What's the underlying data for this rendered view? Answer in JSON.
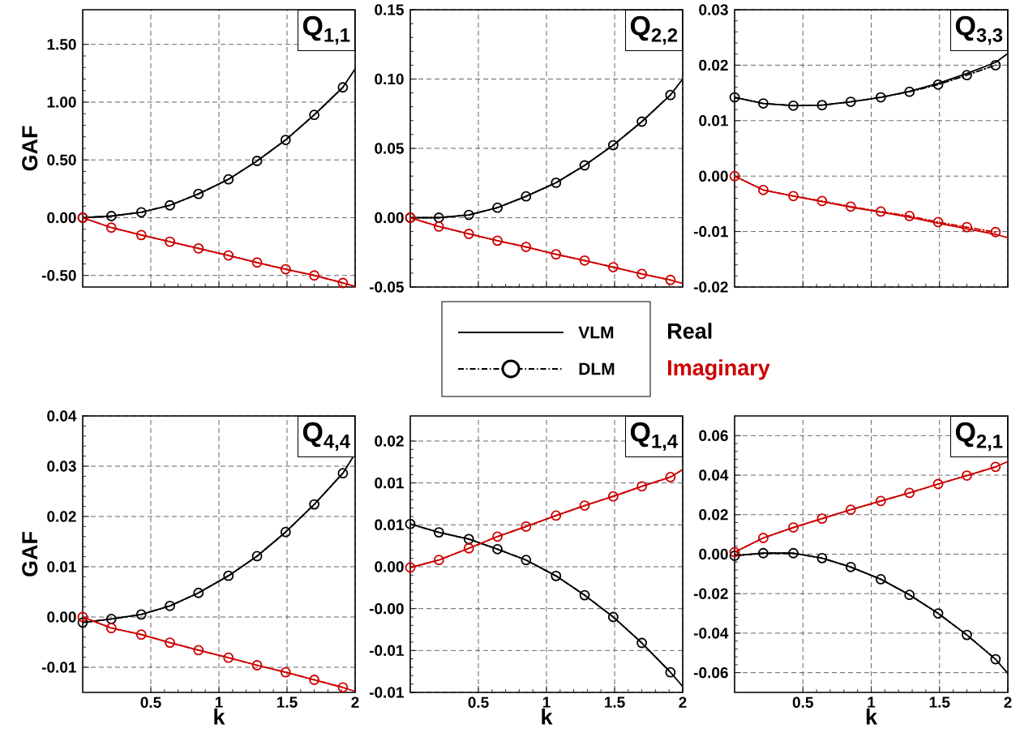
{
  "chart_data": [
    {
      "type": "line",
      "title": "Q$_{1,1}$",
      "ylabel": "GAF",
      "xlim": [
        0,
        2
      ],
      "ylim": [
        -0.6,
        1.8
      ],
      "xticks": [
        0.5,
        1,
        1.5,
        2
      ],
      "tick_labels": "y",
      "grid": true,
      "yticks": [
        {
          "value": -0.5,
          "label": "-0.50"
        },
        {
          "value": 0,
          "label": "0.00"
        },
        {
          "value": 0.5,
          "label": "0.50"
        },
        {
          "value": 1,
          "label": "1.00"
        },
        {
          "value": 1.5,
          "label": "1.50"
        }
      ],
      "series": [
        {
          "color": "#000000",
          "line_style": "dashed",
          "marker": "circle",
          "x": [
            0,
            0.21,
            0.43,
            0.64,
            0.85,
            1.07,
            1.28,
            1.49,
            1.7,
            1.91
          ],
          "values": [
            0,
            0.014,
            0.047,
            0.107,
            0.206,
            0.332,
            0.491,
            0.673,
            0.89,
            1.128
          ]
        },
        {
          "color": "#000000",
          "line_style": "solid",
          "marker": "none",
          "x": [
            0,
            0.21,
            0.43,
            0.64,
            0.85,
            1.07,
            1.28,
            1.49,
            1.7,
            1.91,
            2
          ],
          "values": [
            0,
            0.014,
            0.047,
            0.107,
            0.206,
            0.332,
            0.491,
            0.673,
            0.89,
            1.128,
            1.287
          ]
        },
        {
          "color": "#cc0000",
          "line_style": "dashed",
          "marker": "circle",
          "x": [
            0,
            0.21,
            0.43,
            0.64,
            0.85,
            1.07,
            1.28,
            1.49,
            1.7,
            1.91
          ],
          "values": [
            0,
            -0.086,
            -0.15,
            -0.208,
            -0.266,
            -0.327,
            -0.388,
            -0.446,
            -0.5,
            -0.565
          ]
        },
        {
          "color": "#cc0000",
          "line_style": "solid",
          "marker": "none",
          "x": [
            0,
            0.21,
            0.43,
            0.64,
            0.85,
            1.07,
            1.28,
            1.49,
            1.7,
            1.91,
            2
          ],
          "values": [
            0,
            -0.086,
            -0.15,
            -0.208,
            -0.266,
            -0.327,
            -0.388,
            -0.446,
            -0.5,
            -0.565,
            -0.595
          ]
        }
      ]
    },
    {
      "type": "line",
      "title": "Q$_{2,2}$",
      "xlim": [
        0,
        2
      ],
      "ylim": [
        -0.05,
        0.15
      ],
      "xticks": [
        0.5,
        1,
        1.5,
        2
      ],
      "tick_labels": "y",
      "grid": true,
      "yticks": [
        -0.05,
        {
          "value": 0,
          "label": "0.00"
        },
        0.05,
        {
          "value": 0.1,
          "label": "0.10"
        },
        0.15
      ],
      "series": [
        {
          "color": "#000000",
          "line_style": "dashed",
          "marker": "circle",
          "x": [
            0,
            0.21,
            0.43,
            0.64,
            0.85,
            1.07,
            1.28,
            1.49,
            1.7,
            1.91
          ],
          "values": [
            0,
            0,
            0.002,
            0.0072,
            0.0154,
            0.0252,
            0.0377,
            0.0523,
            0.0693,
            0.0885
          ]
        },
        {
          "color": "#000000",
          "line_style": "solid",
          "marker": "none",
          "x": [
            0,
            0.21,
            0.43,
            0.64,
            0.85,
            1.07,
            1.28,
            1.49,
            1.7,
            1.91,
            2
          ],
          "values": [
            0,
            0,
            0.002,
            0.0072,
            0.0154,
            0.0252,
            0.0377,
            0.0523,
            0.0693,
            0.0885,
            0.1
          ]
        },
        {
          "color": "#cc0000",
          "line_style": "dashed",
          "marker": "circle",
          "x": [
            0,
            0.21,
            0.43,
            0.64,
            0.85,
            1.07,
            1.28,
            1.49,
            1.7,
            1.91
          ],
          "values": [
            0,
            -0.0064,
            -0.0117,
            -0.0166,
            -0.0211,
            -0.0264,
            -0.0309,
            -0.0357,
            -0.0406,
            -0.0449
          ]
        },
        {
          "color": "#cc0000",
          "line_style": "solid",
          "marker": "none",
          "x": [
            0,
            0.21,
            0.43,
            0.64,
            0.85,
            1.07,
            1.28,
            1.49,
            1.7,
            1.91,
            2
          ],
          "values": [
            0,
            -0.0064,
            -0.0117,
            -0.0166,
            -0.0211,
            -0.0264,
            -0.0309,
            -0.0357,
            -0.0406,
            -0.0449,
            -0.0475
          ]
        }
      ]
    },
    {
      "type": "line",
      "title": "Q$_{3,3}$",
      "xlim": [
        0,
        2
      ],
      "ylim": [
        -0.02,
        0.03
      ],
      "xticks": [
        0.5,
        1,
        1.5,
        2
      ],
      "tick_labels": "y",
      "grid": true,
      "yticks": [
        -0.02,
        -0.01,
        {
          "value": 0,
          "label": "0.00"
        },
        0.01,
        0.02,
        0.03
      ],
      "series": [
        {
          "color": "#000000",
          "line_style": "dashed",
          "marker": "circle",
          "x": [
            0,
            0.21,
            0.43,
            0.64,
            0.85,
            1.07,
            1.28,
            1.49,
            1.7,
            1.91
          ],
          "values": [
            0.0142,
            0.0131,
            0.0127,
            0.0128,
            0.0134,
            0.0142,
            0.0152,
            0.0165,
            0.0182,
            0.02
          ]
        },
        {
          "color": "#000000",
          "line_style": "solid",
          "marker": "none",
          "x": [
            0,
            0.21,
            0.43,
            0.64,
            0.85,
            1.07,
            1.28,
            1.49,
            1.7,
            1.91,
            2
          ],
          "values": [
            0.0142,
            0.0131,
            0.0127,
            0.0128,
            0.0134,
            0.0142,
            0.0153,
            0.0167,
            0.0185,
            0.0205,
            0.0221
          ]
        },
        {
          "color": "#cc0000",
          "line_style": "dashed",
          "marker": "circle",
          "x": [
            0,
            0.21,
            0.43,
            0.64,
            0.85,
            1.07,
            1.28,
            1.49,
            1.7,
            1.91
          ],
          "values": [
            0,
            -0.0025,
            -0.0036,
            -0.0045,
            -0.0055,
            -0.0064,
            -0.0072,
            -0.0083,
            -0.0092,
            -0.0101
          ]
        },
        {
          "color": "#cc0000",
          "line_style": "solid",
          "marker": "none",
          "x": [
            0,
            0.21,
            0.43,
            0.64,
            0.85,
            1.07,
            1.28,
            1.49,
            1.7,
            1.91,
            2
          ],
          "values": [
            0,
            -0.0025,
            -0.0036,
            -0.0046,
            -0.0056,
            -0.0065,
            -0.0074,
            -0.0085,
            -0.0095,
            -0.0105,
            -0.0111
          ]
        }
      ]
    },
    {
      "type": "other",
      "annotations": [
        "VLM",
        "DLM",
        "Real",
        "Imaginary"
      ]
    },
    {
      "type": "line",
      "title": "Q$_{4,4}$",
      "ylabel": "GAF",
      "xlabel": "k",
      "xlim": [
        0,
        2
      ],
      "ylim": [
        -0.015,
        0.04
      ],
      "xticks": [
        0.5,
        1,
        1.5,
        2
      ],
      "grid": true,
      "yticks": [
        -0.01,
        {
          "value": 0,
          "label": "0.00"
        },
        0.01,
        0.02,
        0.03,
        0.04
      ],
      "series": [
        {
          "color": "#000000",
          "line_style": "dashed",
          "marker": "circle",
          "x": [
            0,
            0.21,
            0.43,
            0.64,
            0.85,
            1.07,
            1.28,
            1.49,
            1.7,
            1.91
          ],
          "values": [
            -0.0011,
            -0.0004,
            0.0005,
            0.0022,
            0.0048,
            0.0082,
            0.0121,
            0.0169,
            0.0224,
            0.0286
          ]
        },
        {
          "color": "#000000",
          "line_style": "solid",
          "marker": "none",
          "x": [
            0,
            0.21,
            0.43,
            0.64,
            0.85,
            1.07,
            1.28,
            1.49,
            1.7,
            1.91,
            2
          ],
          "values": [
            -0.0011,
            -0.0004,
            0.0005,
            0.0022,
            0.0048,
            0.0082,
            0.0121,
            0.0169,
            0.0224,
            0.0286,
            0.0325
          ]
        },
        {
          "color": "#cc0000",
          "line_style": "dashed",
          "marker": "circle",
          "x": [
            0,
            0.21,
            0.43,
            0.64,
            0.85,
            1.07,
            1.28,
            1.49,
            1.7,
            1.91
          ],
          "values": [
            0,
            -0.0022,
            -0.0035,
            -0.0051,
            -0.0066,
            -0.0081,
            -0.0096,
            -0.011,
            -0.0125,
            -0.014
          ]
        },
        {
          "color": "#cc0000",
          "line_style": "solid",
          "marker": "none",
          "x": [
            0,
            0.21,
            0.43,
            0.64,
            0.85,
            1.07,
            1.28,
            1.49,
            1.7,
            1.91,
            2
          ],
          "values": [
            0,
            -0.0022,
            -0.0035,
            -0.0051,
            -0.0066,
            -0.0081,
            -0.0096,
            -0.011,
            -0.0125,
            -0.014,
            -0.0148
          ]
        }
      ]
    },
    {
      "type": "line",
      "title": "Q$_{1,4}$",
      "xlabel": "k",
      "xlim": [
        0,
        2
      ],
      "ylim": [
        -0.0125,
        0.0205
      ],
      "xticks": [
        0.5,
        1,
        1.5,
        2
      ],
      "grid": true,
      "yticks": [
        {
          "value": -0.0125,
          "label": "-0.01"
        },
        {
          "value": -0.0075,
          "label": "-0.01"
        },
        {
          "value": -0.0025,
          "label": "-0.00"
        },
        {
          "value": 0.0025,
          "label": "0.00"
        },
        {
          "value": 0.0075,
          "label": "0.01"
        },
        {
          "value": 0.0125,
          "label": "0.01"
        },
        {
          "value": 0.0175,
          "label": "0.02"
        }
      ],
      "series": [
        {
          "color": "#000000",
          "line_style": "dashed",
          "marker": "circle",
          "x": [
            0,
            0.21,
            0.43,
            0.64,
            0.85,
            1.07,
            1.28,
            1.49,
            1.7,
            1.91
          ],
          "values": [
            0.0076,
            0.0066,
            0.0058,
            0.0046,
            0.0033,
            0.0014,
            -0.0009,
            -0.0035,
            -0.0066,
            -0.0101
          ]
        },
        {
          "color": "#000000",
          "line_style": "solid",
          "marker": "none",
          "x": [
            0,
            0.21,
            0.43,
            0.64,
            0.85,
            1.07,
            1.28,
            1.49,
            1.7,
            1.91,
            2
          ],
          "values": [
            0.0076,
            0.0066,
            0.0058,
            0.0046,
            0.0033,
            0.0014,
            -0.0009,
            -0.0035,
            -0.0066,
            -0.0101,
            -0.0118
          ]
        },
        {
          "color": "#cc0000",
          "line_style": "dashed",
          "marker": "circle",
          "x": [
            0,
            0.21,
            0.43,
            0.64,
            0.85,
            1.07,
            1.28,
            1.49,
            1.7,
            1.91
          ],
          "values": [
            0.0024,
            0.0033,
            0.0047,
            0.0061,
            0.0073,
            0.0086,
            0.0098,
            0.0109,
            0.0121,
            0.0132
          ]
        },
        {
          "color": "#cc0000",
          "line_style": "solid",
          "marker": "none",
          "x": [
            0,
            0.21,
            0.43,
            0.64,
            0.85,
            1.07,
            1.28,
            1.49,
            1.7,
            1.91,
            2
          ],
          "values": [
            0.0024,
            0.0033,
            0.0047,
            0.0061,
            0.0073,
            0.0086,
            0.0098,
            0.0109,
            0.0121,
            0.0132,
            0.0141
          ]
        }
      ]
    },
    {
      "type": "line",
      "title": "Q$_{2,1}$",
      "xlabel": "k",
      "xlim": [
        0,
        2
      ],
      "ylim": [
        -0.07,
        0.07
      ],
      "xticks": [
        0.5,
        1,
        1.5,
        2
      ],
      "grid": true,
      "yticks": [
        -0.06,
        -0.04,
        -0.02,
        {
          "value": 0,
          "label": "0.00"
        },
        0.02,
        0.04,
        0.06
      ],
      "series": [
        {
          "color": "#000000",
          "line_style": "dashed",
          "marker": "circle",
          "x": [
            0,
            0.21,
            0.43,
            0.64,
            0.85,
            1.07,
            1.28,
            1.49,
            1.7,
            1.91
          ],
          "values": [
            -0.0008,
            0.0005,
            0.0005,
            -0.002,
            -0.0065,
            -0.0127,
            -0.0206,
            -0.03,
            -0.0409,
            -0.0532
          ]
        },
        {
          "color": "#000000",
          "line_style": "solid",
          "marker": "none",
          "x": [
            0,
            0.21,
            0.43,
            0.64,
            0.85,
            1.07,
            1.28,
            1.49,
            1.7,
            1.91,
            2
          ],
          "values": [
            -0.0008,
            0.0005,
            0.0005,
            -0.002,
            -0.0065,
            -0.0127,
            -0.0206,
            -0.03,
            -0.0409,
            -0.0532,
            -0.0604
          ]
        },
        {
          "color": "#cc0000",
          "line_style": "dashed",
          "marker": "circle",
          "x": [
            0,
            0.21,
            0.43,
            0.64,
            0.85,
            1.07,
            1.28,
            1.49,
            1.7,
            1.91
          ],
          "values": [
            0.001,
            0.0082,
            0.0135,
            0.018,
            0.0225,
            0.0269,
            0.031,
            0.0355,
            0.0398,
            0.0442
          ]
        },
        {
          "color": "#cc0000",
          "line_style": "solid",
          "marker": "none",
          "x": [
            0,
            0.21,
            0.43,
            0.64,
            0.85,
            1.07,
            1.28,
            1.49,
            1.7,
            1.91,
            2
          ],
          "values": [
            0.001,
            0.0082,
            0.0135,
            0.018,
            0.0225,
            0.0269,
            0.031,
            0.0355,
            0.0398,
            0.0442,
            0.0469
          ]
        }
      ]
    }
  ]
}
